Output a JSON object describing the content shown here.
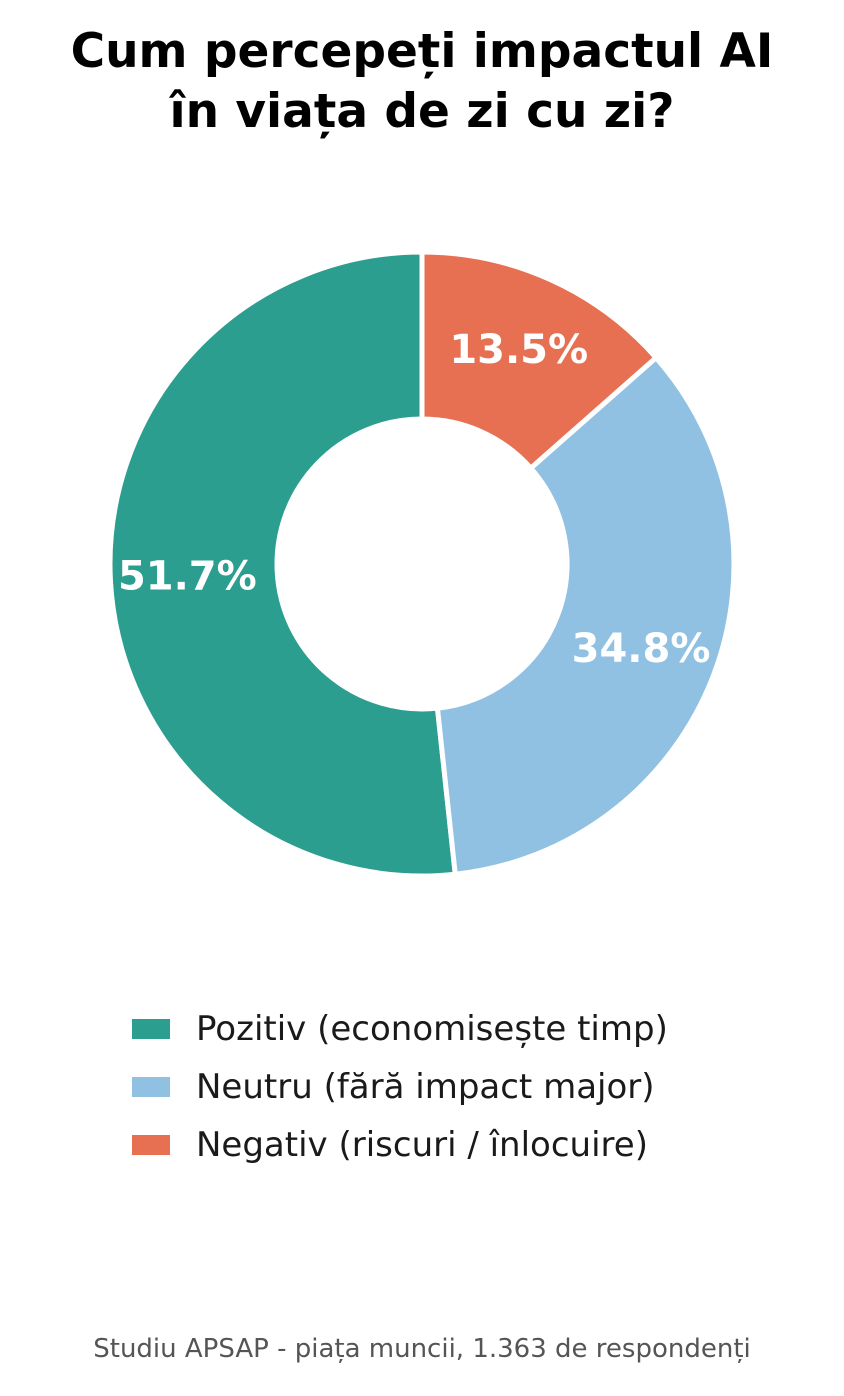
{
  "chart_data": {
    "type": "pie",
    "title_lines": [
      "Cum percepeți impactul AI",
      "în viața de zi cu zi?"
    ],
    "categories": [
      "Pozitiv (economisește timp)",
      "Neutru (fără impact major)",
      "Negativ (riscuri / înlocuire)"
    ],
    "values": [
      51.7,
      34.8,
      13.5
    ],
    "value_labels": [
      "51.7%",
      "34.8%",
      "13.5%"
    ],
    "colors": [
      "#2b9e8f",
      "#90c1e2",
      "#e87052"
    ],
    "donut": true,
    "legend_placement": "bottom",
    "source": "Studiu APSAP - piața muncii, 1.363 de respondenți"
  }
}
